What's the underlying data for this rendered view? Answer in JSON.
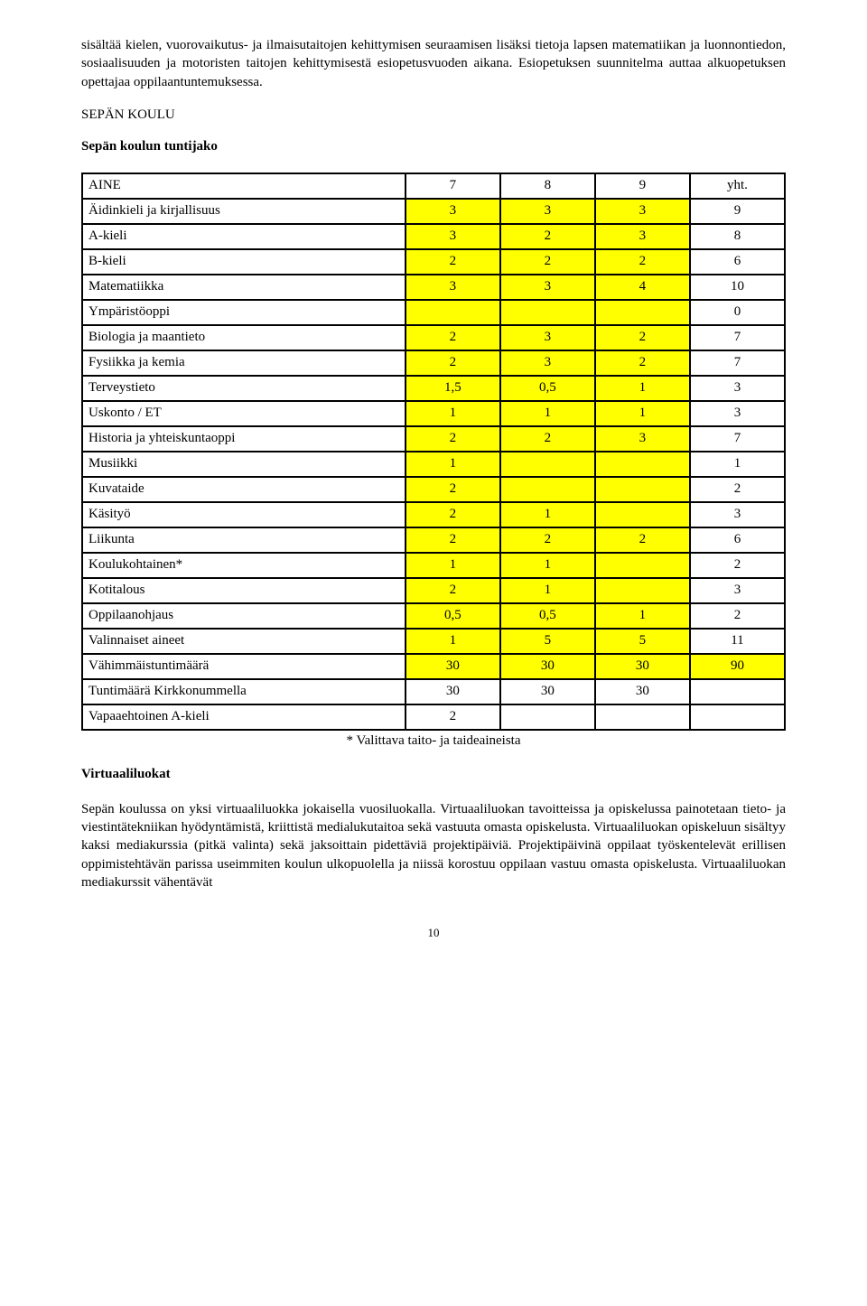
{
  "colors": {
    "highlight": "#ffff00",
    "text": "#000000",
    "bg": "#ffffff",
    "border": "#000000"
  },
  "intro_para": "sisältää kielen, vuorovaikutus- ja ilmaisutaitojen kehittymisen seuraamisen lisäksi tietoja lapsen matematiikan ja luonnontiedon, sosiaalisuuden ja motoristen taitojen kehittymisestä esiopetusvuoden aikana. Esiopetuksen suunnitelma auttaa alkuopetuksen opettajaa oppilaantuntemuksessa.",
  "section_heading": "SEPÄN KOULU",
  "sub_heading": "Sepän koulun tuntijako",
  "table": {
    "header": {
      "subject": "AINE",
      "c7": "7",
      "c8": "8",
      "c9": "9",
      "yht": "yht."
    },
    "rows": [
      {
        "subject": "Äidinkieli ja kirjallisuus",
        "c7": "3",
        "c8": "3",
        "c9": "3",
        "yht": "9",
        "hl": [
          true,
          true,
          true,
          false
        ]
      },
      {
        "subject": "A-kieli",
        "c7": "3",
        "c8": "2",
        "c9": "3",
        "yht": "8",
        "hl": [
          true,
          true,
          true,
          false
        ]
      },
      {
        "subject": "B-kieli",
        "c7": "2",
        "c8": "2",
        "c9": "2",
        "yht": "6",
        "hl": [
          true,
          true,
          true,
          false
        ]
      },
      {
        "subject": "Matematiikka",
        "c7": "3",
        "c8": "3",
        "c9": "4",
        "yht": "10",
        "hl": [
          true,
          true,
          true,
          false
        ]
      },
      {
        "subject": "Ympäristöoppi",
        "c7": "",
        "c8": "",
        "c9": "",
        "yht": "0",
        "hl": [
          true,
          true,
          true,
          false
        ]
      },
      {
        "subject": "Biologia ja maantieto",
        "c7": "2",
        "c8": "3",
        "c9": "2",
        "yht": "7",
        "hl": [
          true,
          true,
          true,
          false
        ]
      },
      {
        "subject": "Fysiikka ja kemia",
        "c7": "2",
        "c8": "3",
        "c9": "2",
        "yht": "7",
        "hl": [
          true,
          true,
          true,
          false
        ]
      },
      {
        "subject": "Terveystieto",
        "c7": "1,5",
        "c8": "0,5",
        "c9": "1",
        "yht": "3",
        "hl": [
          true,
          true,
          true,
          false
        ]
      },
      {
        "subject": "Uskonto / ET",
        "c7": "1",
        "c8": "1",
        "c9": "1",
        "yht": "3",
        "hl": [
          true,
          true,
          true,
          false
        ]
      },
      {
        "subject": "Historia ja yhteiskuntaoppi",
        "c7": "2",
        "c8": "2",
        "c9": "3",
        "yht": "7",
        "hl": [
          true,
          true,
          true,
          false
        ]
      },
      {
        "subject": "Musiikki",
        "c7": "1",
        "c8": "",
        "c9": "",
        "yht": "1",
        "hl": [
          true,
          true,
          true,
          false
        ]
      },
      {
        "subject": "Kuvataide",
        "c7": "2",
        "c8": "",
        "c9": "",
        "yht": "2",
        "hl": [
          true,
          true,
          true,
          false
        ]
      },
      {
        "subject": "Käsityö",
        "c7": "2",
        "c8": "1",
        "c9": "",
        "yht": "3",
        "hl": [
          true,
          true,
          true,
          false
        ]
      },
      {
        "subject": "Liikunta",
        "c7": "2",
        "c8": "2",
        "c9": "2",
        "yht": "6",
        "hl": [
          true,
          true,
          true,
          false
        ]
      },
      {
        "subject": "Koulukohtainen*",
        "c7": "1",
        "c8": "1",
        "c9": "",
        "yht": "2",
        "hl": [
          true,
          true,
          true,
          false
        ]
      },
      {
        "subject": "Kotitalous",
        "c7": "2",
        "c8": "1",
        "c9": "",
        "yht": "3",
        "hl": [
          true,
          true,
          true,
          false
        ]
      },
      {
        "subject": "Oppilaanohjaus",
        "c7": "0,5",
        "c8": "0,5",
        "c9": "1",
        "yht": "2",
        "hl": [
          true,
          true,
          true,
          false
        ]
      },
      {
        "subject": "Valinnaiset aineet",
        "c7": "1",
        "c8": "5",
        "c9": "5",
        "yht": "11",
        "hl": [
          true,
          true,
          true,
          false
        ]
      },
      {
        "subject": "Vähimmäistuntimäärä",
        "c7": "30",
        "c8": "30",
        "c9": "30",
        "yht": "90",
        "hl": [
          true,
          true,
          true,
          true
        ]
      },
      {
        "subject": "Tuntimäärä Kirkkonummella",
        "c7": "30",
        "c8": "30",
        "c9": "30",
        "yht": "",
        "hl": [
          false,
          false,
          false,
          false
        ]
      },
      {
        "subject": "Vapaaehtoinen A-kieli",
        "c7": "2",
        "c8": "",
        "c9": "",
        "yht": "",
        "hl": [
          false,
          false,
          false,
          false
        ]
      }
    ]
  },
  "footnote": "* Valittava taito- ja taideaineista",
  "virtual_heading": "Virtuaaliluokat",
  "virtual_para": "Sepän koulussa on yksi virtuaaliluokka jokaisella vuosiluokalla. Virtuaaliluokan tavoitteissa ja opiskelussa painotetaan tieto- ja viestintätekniikan hyödyntämistä, kriittistä medialukutaitoa sekä vastuuta omasta opiskelusta. Virtuaaliluokan opiskeluun sisältyy kaksi mediakurssia (pitkä valinta) sekä jaksoittain pidettäviä projektipäiviä. Projektipäivinä oppilaat työskentelevät erillisen oppimistehtävän parissa useimmiten koulun ulkopuolella ja niissä korostuu oppilaan vastuu omasta opiskelusta. Virtuaaliluokan mediakurssit vähentävät",
  "page_number": "10"
}
